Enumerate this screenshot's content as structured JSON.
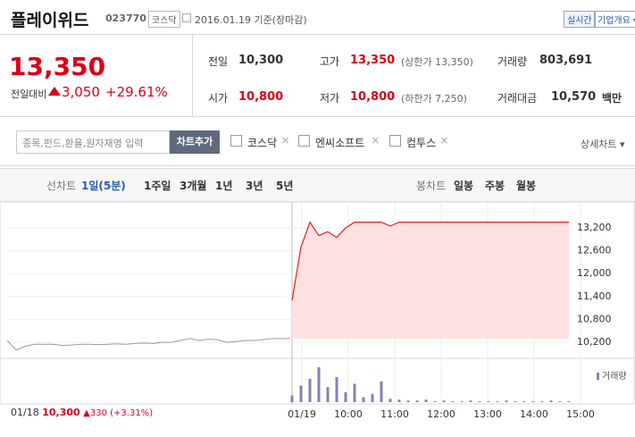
{
  "header": {
    "name": "플레이위드",
    "code": "023770",
    "market": "코스닥",
    "date": "2016.01.19 기준(장마감)",
    "realtime": "실시간",
    "company_info": "기업개요"
  },
  "quote": {
    "price": "13,350",
    "change_label": "전일대비",
    "change": "3,050",
    "change_pct": "+29.61%",
    "stats": [
      {
        "label": "전일",
        "value": "10,300"
      },
      {
        "label": "고가",
        "value": "13,350",
        "note": "(상한가 13,350)"
      },
      {
        "label": "거래량",
        "value": "803,691"
      },
      {
        "label": "시가",
        "value": "10,800"
      },
      {
        "label": "저가",
        "value": "10,800",
        "note": "(하한가 7,250)"
      },
      {
        "label": "거래대금",
        "value": "10,570",
        "unit": "백만"
      }
    ]
  },
  "search": {
    "placeholder": "종목,펀드,환율,원자재명 입력",
    "add_button": "차트추가",
    "compare": [
      "코스닥",
      "엔씨소프트",
      "컴투스"
    ],
    "detail": "상세차트"
  },
  "tabs": {
    "line_label": "선차트",
    "line": [
      "1일(5분)",
      "1주일",
      "3개월",
      "1년",
      "3년",
      "5년"
    ],
    "candle_label": "봉차트",
    "candle": [
      "일봉",
      "주봉",
      "월봉"
    ]
  },
  "chart": {
    "ylim": [
      9710,
      13880
    ],
    "yticks": [
      {
        "value": 13200,
        "label": "13,200"
      },
      {
        "value": 12600,
        "label": "12,600"
      },
      {
        "value": 12000,
        "label": "12,000"
      },
      {
        "value": 11400,
        "label": "11,400"
      },
      {
        "value": 10800,
        "label": "10,800"
      },
      {
        "value": 10200,
        "label": "10,200"
      }
    ],
    "base": 10300,
    "prev_values": [
      10250,
      10000,
      10100,
      10150,
      10150,
      10150,
      10120,
      10130,
      10150,
      10150,
      10140,
      10150,
      10160,
      10150,
      10170,
      10180,
      10170,
      10200,
      10200,
      10250,
      10300,
      10250,
      10280,
      10270,
      10200,
      10220,
      10250,
      10250,
      10270,
      10300,
      10300,
      10300
    ],
    "values": [
      11300,
      12700,
      13350,
      13000,
      13100,
      12950,
      13200,
      13350,
      13350,
      13350,
      13350,
      13250,
      13350,
      13350,
      13350,
      13350,
      13350,
      13350,
      13350,
      13350,
      13350,
      13350,
      13350,
      13350,
      13350,
      13350,
      13350,
      13350,
      13350,
      13350,
      13350,
      13350
    ],
    "volume_label": "거래량",
    "volumes": [
      8,
      20,
      28,
      42,
      18,
      30,
      12,
      22,
      6,
      10,
      25,
      4,
      3,
      2,
      2,
      3,
      1,
      2,
      1,
      1,
      2,
      1,
      1,
      1,
      2,
      1,
      1,
      1,
      1,
      2,
      1,
      1
    ],
    "xticks": [
      "01/19",
      "10:00",
      "11:00",
      "12:00",
      "13:00",
      "14:00",
      "15:00"
    ],
    "prev": {
      "date": "01/18",
      "close": "10,300",
      "change": "330",
      "change_pct": "(+3.31%)"
    }
  }
}
